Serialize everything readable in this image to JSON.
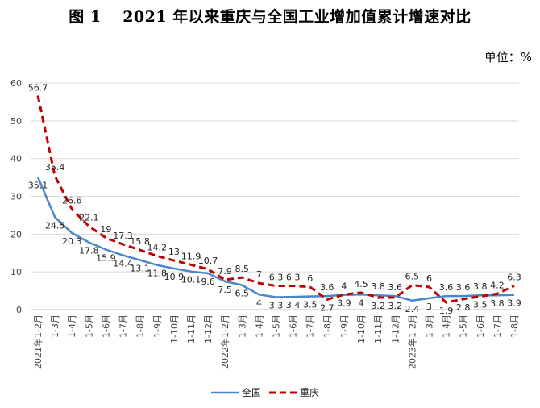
{
  "title": "图 1　 2021 年以来重庆与全国工业增加值累计增速对比",
  "unit": "单位：%",
  "chart_data": {
    "type": "line",
    "title": "图 1　 2021 年以来重庆与全国工业增加值累计增速对比",
    "ylabel": "",
    "xlabel": "",
    "ylim": [
      0,
      60
    ],
    "yticks": [
      0,
      10,
      20,
      30,
      40,
      50,
      60
    ],
    "grid": true,
    "legend_position": "bottom",
    "categories": [
      "2021年1-2月",
      "1-3月",
      "1-4月",
      "1-5月",
      "1-6月",
      "1-7月",
      "1-8月",
      "1-9月",
      "1-10月",
      "1-11月",
      "1-12月",
      "2022年1-2月",
      "1-3月",
      "1-4月",
      "1-5月",
      "1-6月",
      "1-7月",
      "1-8月",
      "1-9月",
      "1-10月",
      "1-11月",
      "1-12月",
      "2023年1-2月",
      "1-3月",
      "1-4月",
      "1-5月",
      "1-6月",
      "1-7月",
      "1-8月"
    ],
    "series": [
      {
        "name": "全国",
        "color": "#4A86C8",
        "style": "solid",
        "values": [
          35.1,
          24.5,
          20.3,
          17.8,
          15.9,
          14.4,
          13.1,
          11.8,
          10.9,
          10.1,
          9.6,
          7.5,
          6.5,
          4,
          3.3,
          3.4,
          3.5,
          3.6,
          3.9,
          4,
          3.8,
          3.6,
          2.4,
          3,
          3.6,
          3.6,
          3.8,
          3.8,
          3.9
        ],
        "labels": [
          "35.1",
          "24.5",
          "20.3",
          "17.8",
          "15.9",
          "14.4",
          "13.1",
          "11.8",
          "10.9",
          "10.1",
          "9.6",
          "7.5",
          "6.5",
          "4",
          "3.3",
          "3.4",
          "3.5",
          "3.6",
          "3.9",
          "4",
          "3.8",
          "3.6",
          "2.4",
          "3",
          "3.6",
          "3.6",
          "3.8",
          "3.8",
          "3.9"
        ]
      },
      {
        "name": "重庆",
        "color": "#C00000",
        "style": "dashed",
        "values": [
          56.7,
          35.4,
          26.6,
          22.1,
          19,
          17.3,
          15.8,
          14.2,
          13,
          11.9,
          10.7,
          7.9,
          8.5,
          7,
          6.3,
          6.3,
          6,
          2.7,
          4,
          4.5,
          3.2,
          3.2,
          6.5,
          6,
          1.9,
          2.8,
          3.5,
          4.2,
          6.3
        ],
        "labels": [
          "56.7",
          "35.4",
          "26.6",
          "22.1",
          "19",
          "17.3",
          "15.8",
          "14.2",
          "13",
          "11.9",
          "10.7",
          "7.9",
          "8.5",
          "7",
          "6.3",
          "6.3",
          "6",
          "2.7",
          "4",
          "4.5",
          "3.2",
          "3.2",
          "6.5",
          "6",
          "1.9",
          "2.8",
          "3.5",
          "4.2",
          "6.3"
        ]
      }
    ]
  }
}
